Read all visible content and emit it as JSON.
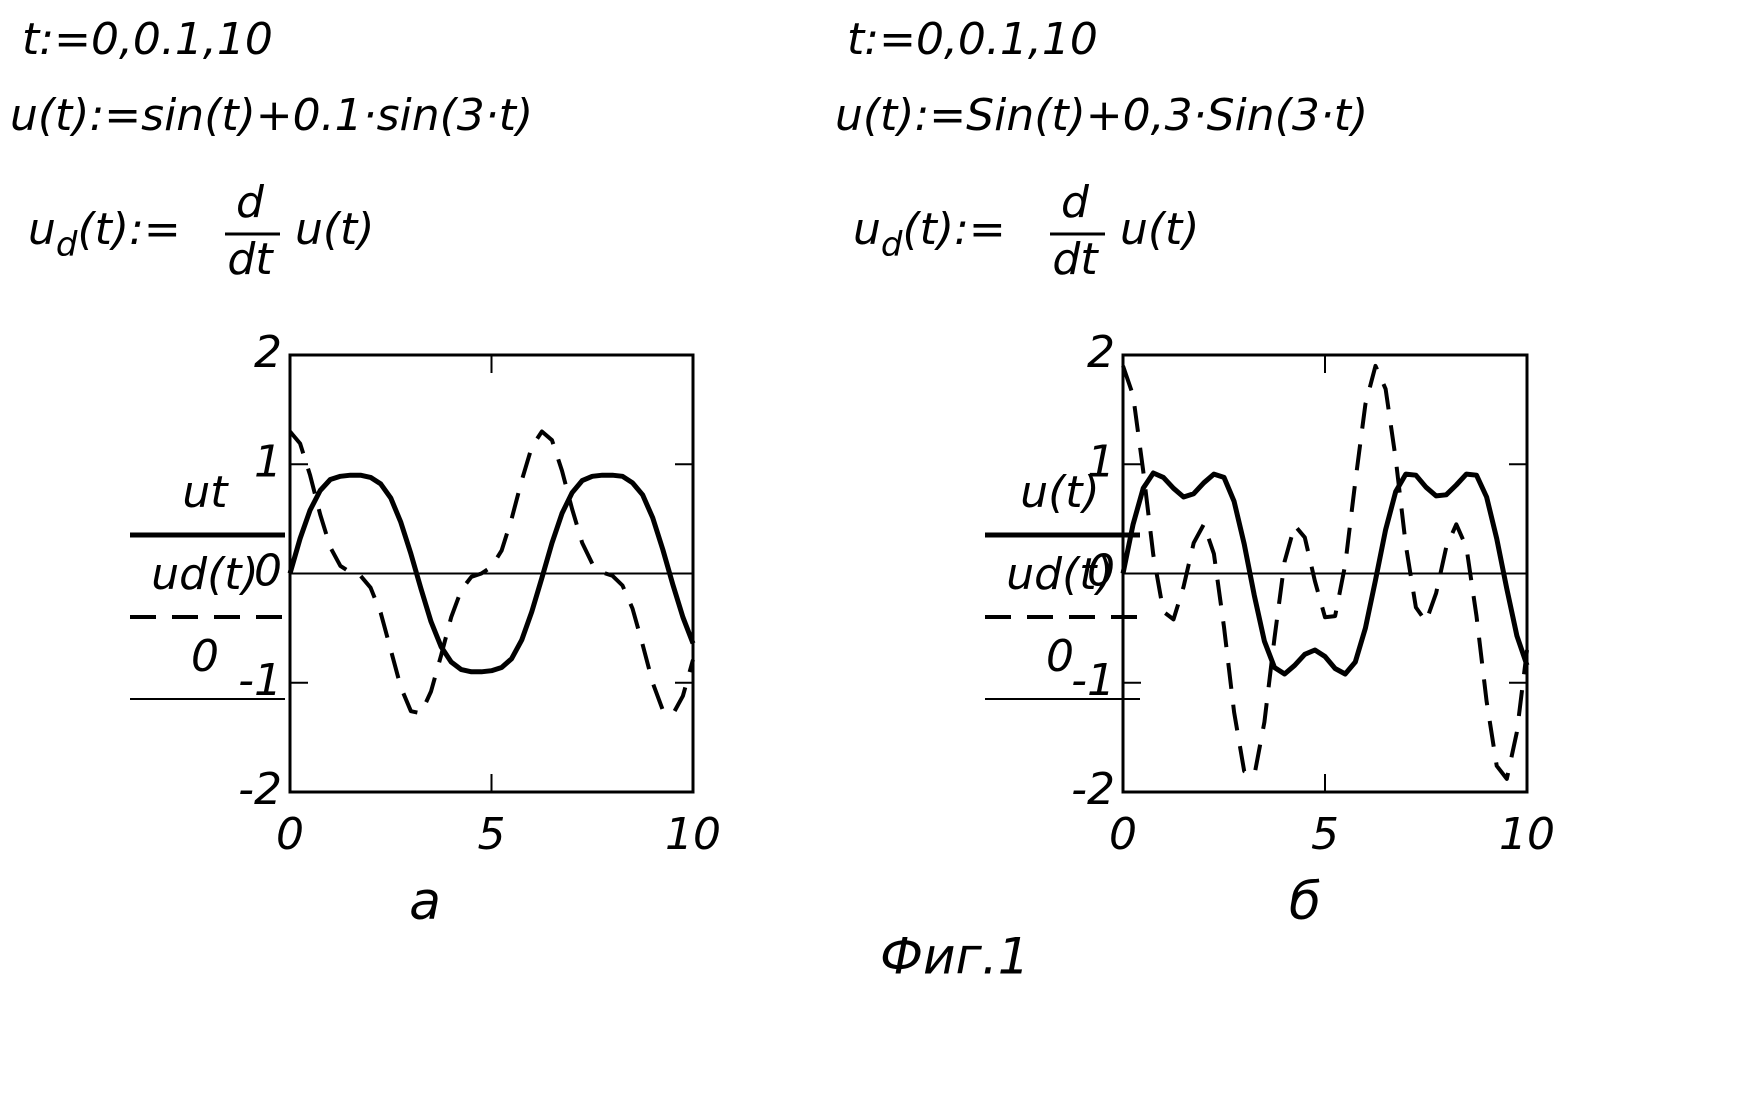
{
  "chart_data": [
    {
      "type": "line",
      "formulas": {
        "t_range": "t:=0,0.1,10",
        "u_def": "u(t):=sin(t)+0.1·sin(3·t)",
        "ud_lhs": "u",
        "ud_sub": "d",
        "ud_eq": "(t):=",
        "frac_num": "d",
        "frac_den": "dt",
        "ud_rhs": "u(t)"
      },
      "caption": "а",
      "x": [
        0,
        0.25,
        0.5,
        0.75,
        1,
        1.25,
        1.5,
        1.75,
        2,
        2.25,
        2.5,
        2.75,
        3,
        3.25,
        3.5,
        3.75,
        4,
        4.25,
        4.5,
        4.75,
        5,
        5.25,
        5.5,
        5.75,
        6,
        6.25,
        6.5,
        6.75,
        7,
        7.25,
        7.5,
        7.75,
        8,
        8.25,
        8.5,
        8.75,
        9,
        9.25,
        9.5,
        9.75,
        10
      ],
      "series": [
        {
          "name": "ut",
          "color": "#000000",
          "style": "solid",
          "values": [
            0,
            0.32,
            0.58,
            0.76,
            0.86,
            0.89,
            0.9,
            0.9,
            0.88,
            0.82,
            0.69,
            0.47,
            0.18,
            -0.14,
            -0.44,
            -0.67,
            -0.81,
            -0.88,
            -0.9,
            -0.9,
            -0.89,
            -0.86,
            -0.78,
            -0.61,
            -0.35,
            -0.04,
            0.28,
            0.55,
            0.74,
            0.85,
            0.89,
            0.9,
            0.9,
            0.89,
            0.83,
            0.72,
            0.51,
            0.22,
            -0.1,
            -0.4,
            -0.64
          ]
        },
        {
          "name": "ud(t)",
          "color": "#000000",
          "style": "dashed",
          "values": [
            1.3,
            1.19,
            0.9,
            0.54,
            0.24,
            0.07,
            0.01,
            -0.02,
            -0.13,
            -0.36,
            -0.7,
            -1.04,
            -1.26,
            -1.28,
            -1.08,
            -0.75,
            -0.4,
            -0.15,
            -0.03,
            0,
            0.06,
            0.21,
            0.5,
            0.85,
            1.16,
            1.3,
            1.22,
            0.94,
            0.59,
            0.28,
            0.09,
            0.01,
            -0.02,
            -0.11,
            -0.32,
            -0.65,
            -1,
            -1.25,
            -1.29,
            -1.12,
            -0.79
          ]
        },
        {
          "name": "0",
          "color": "#000000",
          "style": "thin",
          "x": [
            0,
            10
          ],
          "values": [
            0,
            0
          ]
        }
      ],
      "xlim": [
        0,
        10
      ],
      "xticks": [
        0,
        5,
        10
      ],
      "ylim": [
        -2,
        2
      ],
      "yticks": [
        -2,
        -1,
        0,
        1,
        2
      ],
      "grid": false
    },
    {
      "type": "line",
      "formulas": {
        "t_range": "t:=0,0.1,10",
        "u_def": "u(t):=Sin(t)+0,3·Sin(3·t)",
        "ud_lhs": "u",
        "ud_sub": "d",
        "ud_eq": "(t):=",
        "frac_num": "d",
        "frac_den": "dt",
        "ud_rhs": "u(t)"
      },
      "caption": "б",
      "x": [
        0,
        0.25,
        0.5,
        0.75,
        1,
        1.25,
        1.5,
        1.75,
        2,
        2.25,
        2.5,
        2.75,
        3,
        3.25,
        3.5,
        3.75,
        4,
        4.25,
        4.5,
        4.75,
        5,
        5.25,
        5.5,
        5.75,
        6,
        6.25,
        6.5,
        6.75,
        7,
        7.25,
        7.5,
        7.75,
        8,
        8.25,
        8.5,
        8.75,
        9,
        9.25,
        9.5,
        9.75,
        10
      ],
      "series": [
        {
          "name": "u(t)",
          "color": "#000000",
          "style": "solid",
          "values": [
            0,
            0.45,
            0.78,
            0.92,
            0.88,
            0.78,
            0.7,
            0.73,
            0.83,
            0.91,
            0.88,
            0.66,
            0.27,
            -0.2,
            -0.62,
            -0.86,
            -0.92,
            -0.84,
            -0.74,
            -0.7,
            -0.76,
            -0.87,
            -0.92,
            -0.81,
            -0.5,
            -0.06,
            0.4,
            0.75,
            0.91,
            0.9,
            0.79,
            0.71,
            0.72,
            0.81,
            0.91,
            0.9,
            0.7,
            0.32,
            -0.14,
            -0.57,
            -0.84
          ]
        },
        {
          "name": "ud(t)",
          "color": "#000000",
          "style": "dashed",
          "values": [
            1.9,
            1.63,
            0.94,
            0.17,
            -0.35,
            -0.42,
            -0.12,
            0.28,
            0.45,
            0.18,
            -0.49,
            -1.27,
            -1.81,
            -1.85,
            -1.36,
            -0.59,
            0.11,
            0.44,
            0.33,
            -0.07,
            -0.4,
            -0.39,
            0.08,
            0.84,
            1.55,
            1.9,
            1.69,
            1.05,
            0.26,
            -0.31,
            -0.44,
            -0.18,
            0.24,
            0.45,
            0.24,
            -0.39,
            -1.17,
            -1.76,
            -1.88,
            -1.45,
            -0.7
          ]
        },
        {
          "name": "0",
          "color": "#000000",
          "style": "thin",
          "x": [
            0,
            10
          ],
          "values": [
            0,
            0
          ]
        }
      ],
      "xlim": [
        0,
        10
      ],
      "xticks": [
        0,
        5,
        10
      ],
      "ylim": [
        -2,
        2
      ],
      "yticks": [
        -2,
        -1,
        0,
        1,
        2
      ],
      "grid": false
    }
  ],
  "figure_caption": "Фиг.1"
}
